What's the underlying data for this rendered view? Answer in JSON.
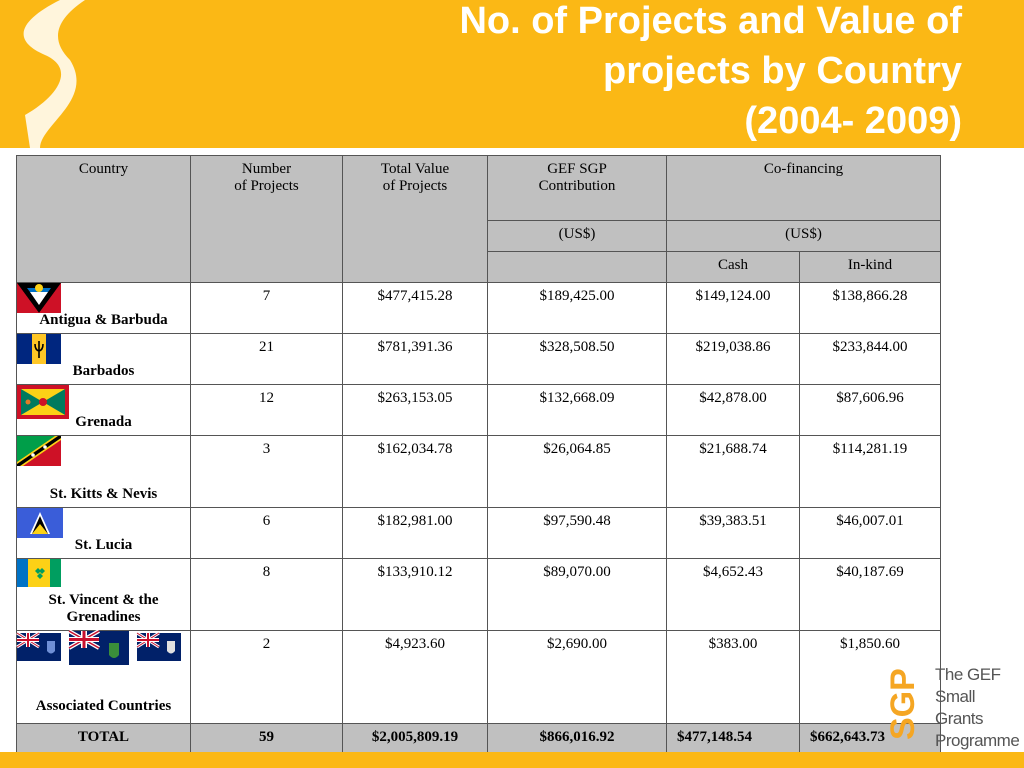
{
  "title": {
    "line1": "No. of Projects and Value of",
    "line2": "projects by Country",
    "line3": "(2004- 2009)"
  },
  "table": {
    "headers": {
      "country": "Country",
      "num_projects_1": "Number",
      "num_projects_2": "of Projects",
      "total_value_1": "Total Value",
      "total_value_2": "of Projects",
      "gef_1": "GEF SGP",
      "gef_2": "Contribution",
      "cofinancing": "Co-financing",
      "gef_unit": "(US$)",
      "cofin_unit": "(US$)",
      "cash": "Cash",
      "inkind": "In-kind"
    },
    "rows": [
      {
        "country": "Antigua & Barbuda",
        "flag": "antigua-flag",
        "projects": "7",
        "total": "$477,415.28",
        "gef": "$189,425.00",
        "cash": "$149,124.00",
        "inkind": "$138,866.28"
      },
      {
        "country": "Barbados",
        "flag": "barbados-flag",
        "projects": "21",
        "total": "$781,391.36",
        "gef": "$328,508.50",
        "cash": "$219,038.86",
        "inkind": "$233,844.00"
      },
      {
        "country": "Grenada",
        "flag": "grenada-flag",
        "projects": "12",
        "total": "$263,153.05",
        "gef": "$132,668.09",
        "cash": "$42,878.00",
        "inkind": "$87,606.96"
      },
      {
        "country": "St. Kitts & Nevis",
        "flag": "st-kitts-flag",
        "projects": "3",
        "total": "$162,034.78",
        "gef": "$26,064.85",
        "cash": "$21,688.74",
        "inkind": "$114,281.19"
      },
      {
        "country": "St. Lucia",
        "flag": "st-lucia-flag",
        "projects": "6",
        "total": "$182,981.00",
        "gef": "$97,590.48",
        "cash": "$39,383.51",
        "inkind": "$46,007.01"
      },
      {
        "country": "St. Vincent & the Grenadines",
        "flag": "st-vincent-flag",
        "projects": "8",
        "total": "$133,910.12",
        "gef": "$89,070.00",
        "cash": "$4,652.43",
        "inkind": "$40,187.69"
      },
      {
        "country": "Associated Countries",
        "flag": "associated-flags",
        "projects": "2",
        "total": "$4,923.60",
        "gef": "$2,690.00",
        "cash": "$383.00",
        "inkind": "$1,850.60"
      }
    ],
    "total": {
      "label": "TOTAL",
      "projects": "59",
      "total": "$2,005,809.19",
      "gef": "$866,016.92",
      "cash": "$477,148.54",
      "inkind": "$662,643.73"
    }
  },
  "logo": {
    "mark": "SGP",
    "line1": "The GEF",
    "line2": "Small Grants",
    "line3": "Programme"
  },
  "colors": {
    "banner": "#fbb815",
    "header_fill": "#c0c0c0",
    "logo_orange": "#f5a623"
  }
}
